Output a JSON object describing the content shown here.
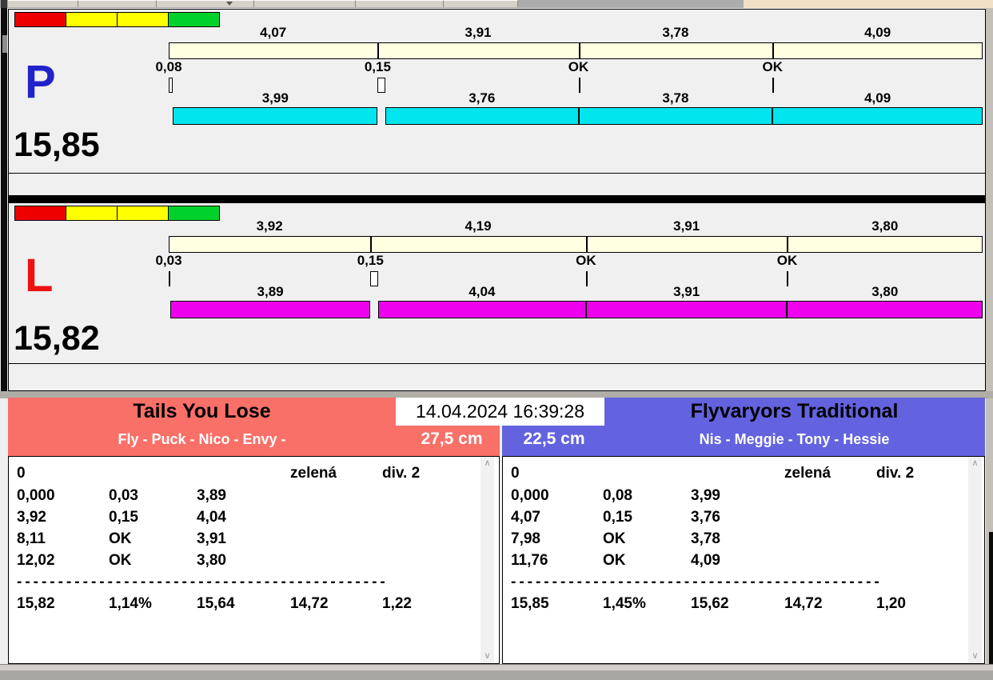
{
  "window": {
    "datetime": "14.04.2024 16:39:28"
  },
  "colors": {
    "background": "#F0F0F0",
    "split_bar": "#FFFFE2",
    "right_lane_bar": "#00E5EE",
    "left_lane_bar": "#EE00EE",
    "left_team_header": "#F87068",
    "right_team_header": "#6363DF"
  },
  "lanes": [
    {
      "letter": "P",
      "letter_color": "#2222CC",
      "bar_color": "#00E5EE",
      "total_display": "15,85",
      "total_seconds": 15.85,
      "status_lights": [
        "#EE0000",
        "#FFFF00",
        "#FFFF00",
        "#00D22B"
      ],
      "leg_labels": [
        "4,07",
        "3,91",
        "3,78",
        "4,09"
      ],
      "leg_durations": [
        4.07,
        3.91,
        3.78,
        4.09
      ],
      "cross_labels": [
        "0,08",
        "0,15",
        "OK",
        "OK"
      ],
      "cross_losses": [
        0.08,
        0.15,
        0,
        0
      ],
      "run_labels": [
        "3,99",
        "3,76",
        "3,78",
        "4,09"
      ],
      "run_durations": [
        3.99,
        3.76,
        3.78,
        4.09
      ]
    },
    {
      "letter": "L",
      "letter_color": "#EE1111",
      "bar_color": "#EE00EE",
      "total_display": "15,82",
      "total_seconds": 15.82,
      "status_lights": [
        "#EE0000",
        "#FFFF00",
        "#FFFF00",
        "#00D22B"
      ],
      "leg_labels": [
        "3,92",
        "4,19",
        "3,91",
        "3,80"
      ],
      "leg_durations": [
        3.92,
        4.19,
        3.91,
        3.8
      ],
      "cross_labels": [
        "0,03",
        "0,15",
        "OK",
        "OK"
      ],
      "cross_losses": [
        0.03,
        0.15,
        0,
        0
      ],
      "run_labels": [
        "3,89",
        "4,04",
        "3,91",
        "3,80"
      ],
      "run_durations": [
        3.89,
        4.04,
        3.91,
        3.8
      ]
    }
  ],
  "teams": [
    {
      "name": "Tails You Lose",
      "members": "Fly - Puck - Nico - Envy -",
      "jump_height": "27,5 cm",
      "header_color": "#F87068",
      "info_row": {
        "start": "0",
        "light": "zelená",
        "division": "div. 2"
      },
      "leg_rows": [
        [
          "0,000",
          "0,03",
          "3,89"
        ],
        [
          "3,92",
          "0,15",
          "4,04"
        ],
        [
          "8,11",
          "OK",
          "3,91"
        ],
        [
          "12,02",
          "OK",
          "3,80"
        ]
      ],
      "divider": "---------------------------------------------",
      "totals_row": [
        "15,82",
        "1,14%",
        "15,64",
        "14,72",
        "1,22"
      ]
    },
    {
      "name": "Flyvaryors Traditional",
      "members": "Nis - Meggie - Tony - Hessie",
      "jump_height": "22,5 cm",
      "header_color": "#6363DF",
      "info_row": {
        "start": "0",
        "light": "zelená",
        "division": "div. 2"
      },
      "leg_rows": [
        [
          "0,000",
          "0,08",
          "3,99"
        ],
        [
          "4,07",
          "0,15",
          "3,76"
        ],
        [
          "7,98",
          "OK",
          "3,78"
        ],
        [
          "11,76",
          "OK",
          "4,09"
        ]
      ],
      "divider": "---------------------------------------------",
      "totals_row": [
        "15,85",
        "1,45%",
        "15,62",
        "14,72",
        "1,20"
      ]
    }
  ],
  "scrollbar": {
    "up_glyph": "∧",
    "down_glyph": "∨"
  }
}
